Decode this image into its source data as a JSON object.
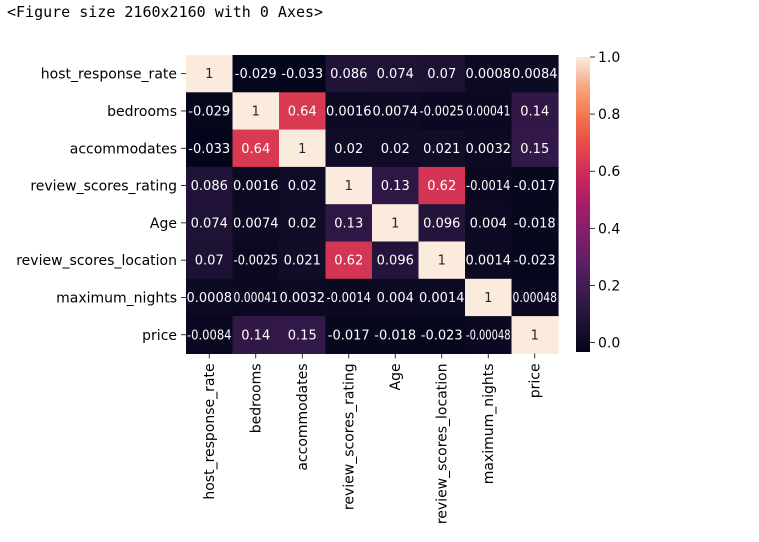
{
  "output_text": "<Figure size 2160x2160 with 0 Axes>",
  "chart_data": {
    "type": "heatmap",
    "title": "",
    "xlabel": "",
    "ylabel": "",
    "row_labels": [
      "host_response_rate",
      "bedrooms",
      "accommodates",
      "review_scores_rating",
      "Age",
      "review_scores_location",
      "maximum_nights",
      "price"
    ],
    "col_labels": [
      "host_response_rate",
      "bedrooms",
      "accommodates",
      "review_scores_rating",
      "Age",
      "review_scores_location",
      "maximum_nights",
      "price"
    ],
    "values": [
      [
        1,
        -0.029,
        -0.033,
        0.086,
        0.074,
        0.07,
        0.0008,
        0.0084
      ],
      [
        -0.029,
        1,
        0.64,
        0.0016,
        0.0074,
        -0.0025,
        0.00041,
        0.14
      ],
      [
        -0.033,
        0.64,
        1,
        0.02,
        0.02,
        0.021,
        0.0032,
        0.15
      ],
      [
        0.086,
        0.0016,
        0.02,
        1,
        0.13,
        0.62,
        -0.0014,
        -0.017
      ],
      [
        0.074,
        0.0074,
        0.02,
        0.13,
        1,
        0.096,
        0.004,
        -0.018
      ],
      [
        0.07,
        -0.0025,
        0.021,
        0.62,
        0.096,
        1,
        0.0014,
        -0.023
      ],
      [
        0.0008,
        0.00041,
        0.0032,
        -0.0014,
        0.004,
        0.0014,
        1,
        0.00048
      ],
      [
        -0.0084,
        0.14,
        0.15,
        -0.017,
        -0.018,
        -0.023,
        -0.00048,
        1
      ]
    ],
    "annotations": [
      [
        "1",
        "-0.029",
        "-0.033",
        "0.086",
        "0.074",
        "0.07",
        "0.0008",
        "0.0084"
      ],
      [
        "-0.029",
        "1",
        "0.64",
        "0.0016",
        "0.0074",
        "-0.0025",
        "0.00041",
        "0.14"
      ],
      [
        "-0.033",
        "0.64",
        "1",
        "0.02",
        "0.02",
        "0.021",
        "0.0032",
        "0.15"
      ],
      [
        "0.086",
        "0.0016",
        "0.02",
        "1",
        "0.13",
        "0.62",
        "-0.0014",
        "-0.017"
      ],
      [
        "0.074",
        "0.0074",
        "0.02",
        "0.13",
        "1",
        "0.096",
        "0.004",
        "-0.018"
      ],
      [
        "0.07",
        "-0.0025",
        "0.021",
        "0.62",
        "0.096",
        "1",
        "0.0014",
        "-0.023"
      ],
      [
        "0.0008",
        "0.00041",
        "0.0032",
        "-0.0014",
        "0.004",
        "0.0014",
        "1",
        "0.00048"
      ],
      [
        "-0.0084",
        "0.14",
        "0.15",
        "-0.017",
        "-0.018",
        "-0.023",
        "-0.00048",
        "1"
      ]
    ],
    "color_range": [
      -0.033,
      1
    ],
    "colorbar_ticks": [
      0.0,
      0.2,
      0.4,
      0.6,
      0.8,
      1.0
    ],
    "colorbar_tick_labels": [
      "0.0",
      "0.2",
      "0.4",
      "0.6",
      "0.8",
      "1.0"
    ],
    "colormap": "rocket",
    "legend_placement": "right",
    "grid": false
  }
}
